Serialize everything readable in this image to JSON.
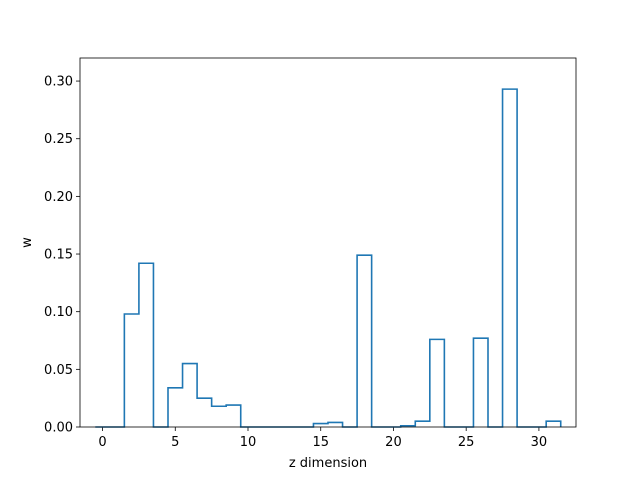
{
  "chart_data": {
    "type": "bar",
    "style": "step-histogram",
    "title": "",
    "xlabel": "z dimension",
    "ylabel": "w",
    "xlim": [
      -1.55,
      32.55
    ],
    "ylim": [
      0,
      0.32
    ],
    "xticks": [
      0,
      5,
      10,
      15,
      20,
      25,
      30
    ],
    "yticks": [
      0.0,
      0.05,
      0.1,
      0.15,
      0.2,
      0.25,
      0.3
    ],
    "x_tick_labels": [
      "0",
      "5",
      "10",
      "15",
      "20",
      "25",
      "30"
    ],
    "y_tick_labels": [
      "0.00",
      "0.05",
      "0.10",
      "0.15",
      "0.20",
      "0.25",
      "0.30"
    ],
    "line_color": "#1f77b4",
    "grid": false,
    "x": [
      0,
      1,
      2,
      3,
      4,
      5,
      6,
      7,
      8,
      9,
      10,
      11,
      12,
      13,
      14,
      15,
      16,
      17,
      18,
      19,
      20,
      21,
      22,
      23,
      24,
      25,
      26,
      27,
      28,
      29,
      30,
      31
    ],
    "values": [
      0.0,
      0.0,
      0.098,
      0.142,
      0.0,
      0.034,
      0.055,
      0.025,
      0.018,
      0.019,
      0.0,
      0.0,
      0.0,
      0.0,
      0.0,
      0.003,
      0.004,
      0.0,
      0.149,
      0.0,
      0.0,
      0.001,
      0.005,
      0.076,
      0.0,
      0.0,
      0.077,
      0.0,
      0.293,
      0.0,
      0.0,
      0.005
    ]
  }
}
